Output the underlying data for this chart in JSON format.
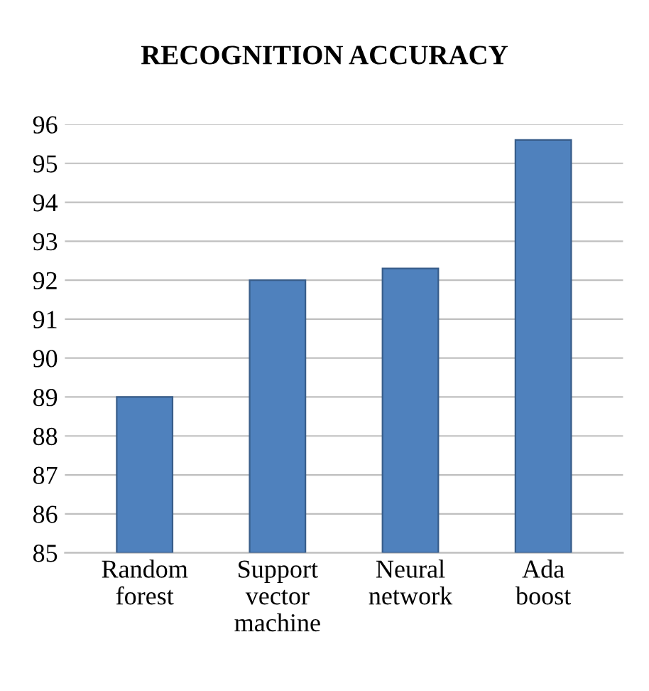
{
  "chart_data": {
    "type": "bar",
    "title": "RECOGNITION ACCURACY",
    "categories": [
      "Random\nforest",
      "Support\nvector\nmachine",
      "Neural\nnetwork",
      "Ada\nboost"
    ],
    "values": [
      89,
      92,
      92.3,
      95.6
    ],
    "color": "#4f81bd",
    "ylim": [
      85,
      96
    ],
    "yticks": [
      85,
      86,
      87,
      88,
      89,
      90,
      91,
      92,
      93,
      94,
      95,
      96
    ],
    "grid": "y",
    "legend": false
  }
}
